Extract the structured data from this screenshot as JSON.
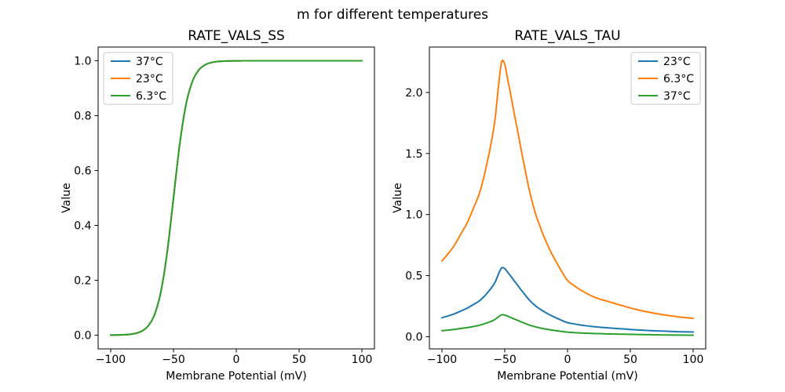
{
  "suptitle": "m for different temperatures",
  "colors": {
    "blue": "#1f77b4",
    "orange": "#ff7f0e",
    "green": "#2ca02c",
    "axes": "#000000",
    "legend_border": "#cccccc",
    "background": "#ffffff"
  },
  "chart_data": [
    {
      "type": "line",
      "title": "RATE_VALS_SS",
      "xlabel": "Membrane Potential (mV)",
      "ylabel": "Value",
      "grid": false,
      "legend_position": "upper-left",
      "xlim": [
        -110,
        110
      ],
      "ylim": [
        -0.05,
        1.05
      ],
      "xticks": [
        -100,
        -50,
        0,
        50,
        100
      ],
      "yticks": [
        0.0,
        0.2,
        0.4,
        0.6,
        0.8,
        1.0
      ],
      "xtick_labels": [
        "−100",
        "−50",
        "0",
        "50",
        "100"
      ],
      "ytick_labels": [
        "0.0",
        "0.2",
        "0.4",
        "0.6",
        "0.8",
        "1.0"
      ],
      "x": [
        -100,
        -95,
        -90,
        -85,
        -80,
        -75,
        -70,
        -65,
        -60,
        -55,
        -50,
        -45,
        -40,
        -35,
        -30,
        -25,
        -20,
        -15,
        -10,
        -5,
        0,
        5,
        10,
        15,
        20,
        25,
        30,
        35,
        40,
        45,
        50,
        55,
        60,
        65,
        70,
        75,
        80,
        85,
        90,
        95,
        100
      ],
      "series": [
        {
          "name": "37°C",
          "color": "#1f77b4",
          "values": [
            0.0002,
            0.0006,
            0.0013,
            0.0029,
            0.0067,
            0.0153,
            0.0345,
            0.0759,
            0.1589,
            0.3029,
            0.5,
            0.6971,
            0.8411,
            0.9241,
            0.9655,
            0.9847,
            0.9933,
            0.9971,
            0.9987,
            0.9994,
            0.9997,
            0.9999,
            0.9999,
            1.0,
            1.0,
            1.0,
            1.0,
            1.0,
            1.0,
            1.0,
            1.0,
            1.0,
            1.0,
            1.0,
            1.0,
            1.0,
            1.0,
            1.0,
            1.0,
            1.0,
            1.0
          ]
        },
        {
          "name": "23°C",
          "color": "#ff7f0e",
          "values": [
            0.0002,
            0.0006,
            0.0013,
            0.0029,
            0.0067,
            0.0153,
            0.0345,
            0.0759,
            0.1589,
            0.3029,
            0.5,
            0.6971,
            0.8411,
            0.9241,
            0.9655,
            0.9847,
            0.9933,
            0.9971,
            0.9987,
            0.9994,
            0.9997,
            0.9999,
            0.9999,
            1.0,
            1.0,
            1.0,
            1.0,
            1.0,
            1.0,
            1.0,
            1.0,
            1.0,
            1.0,
            1.0,
            1.0,
            1.0,
            1.0,
            1.0,
            1.0,
            1.0,
            1.0
          ]
        },
        {
          "name": "6.3°C",
          "color": "#2ca02c",
          "values": [
            0.0002,
            0.0006,
            0.0013,
            0.0029,
            0.0067,
            0.0153,
            0.0345,
            0.0759,
            0.1589,
            0.3029,
            0.5,
            0.6971,
            0.8411,
            0.9241,
            0.9655,
            0.9847,
            0.9933,
            0.9971,
            0.9987,
            0.9994,
            0.9997,
            0.9999,
            0.9999,
            1.0,
            1.0,
            1.0,
            1.0,
            1.0,
            1.0,
            1.0,
            1.0,
            1.0,
            1.0,
            1.0,
            1.0,
            1.0,
            1.0,
            1.0,
            1.0,
            1.0,
            1.0
          ]
        }
      ]
    },
    {
      "type": "line",
      "title": "RATE_VALS_TAU",
      "xlabel": "Membrane Potential (mV)",
      "ylabel": "Value",
      "grid": false,
      "legend_position": "upper-right",
      "xlim": [
        -110,
        110
      ],
      "ylim": [
        -0.1,
        2.372
      ],
      "xticks": [
        -100,
        -50,
        0,
        50,
        100
      ],
      "yticks": [
        0.0,
        0.5,
        1.0,
        1.5,
        2.0
      ],
      "xtick_labels": [
        "−100",
        "−50",
        "0",
        "50",
        "100"
      ],
      "ytick_labels": [
        "0.0",
        "0.5",
        "1.0",
        "1.5",
        "2.0"
      ],
      "x": [
        -100,
        -95,
        -90,
        -85,
        -80,
        -75,
        -70,
        -65,
        -60,
        -57.5,
        -55,
        -52.5,
        -50,
        -47.5,
        -45,
        -42.5,
        -40,
        -37.5,
        -35,
        -32.5,
        -30,
        -27.5,
        -25,
        -22.5,
        -20,
        -15,
        -10,
        -5,
        0,
        5,
        10,
        15,
        20,
        25,
        30,
        35,
        40,
        45,
        50,
        55,
        60,
        65,
        70,
        75,
        80,
        85,
        90,
        95,
        100
      ],
      "series": [
        {
          "name": "23°C",
          "color": "#1f77b4",
          "values": [
            0.155,
            0.17,
            0.188,
            0.21,
            0.233,
            0.263,
            0.295,
            0.345,
            0.408,
            0.45,
            0.513,
            0.563,
            0.558,
            0.525,
            0.493,
            0.458,
            0.425,
            0.39,
            0.358,
            0.325,
            0.295,
            0.27,
            0.248,
            0.23,
            0.213,
            0.183,
            0.158,
            0.135,
            0.115,
            0.105,
            0.096,
            0.089,
            0.083,
            0.078,
            0.074,
            0.07,
            0.066,
            0.063,
            0.059,
            0.056,
            0.053,
            0.05,
            0.048,
            0.046,
            0.044,
            0.042,
            0.04,
            0.039,
            0.038
          ]
        },
        {
          "name": "6.3°C",
          "color": "#ff7f0e",
          "values": [
            0.62,
            0.68,
            0.75,
            0.84,
            0.93,
            1.05,
            1.18,
            1.38,
            1.63,
            1.8,
            2.05,
            2.25,
            2.23,
            2.1,
            1.97,
            1.83,
            1.7,
            1.56,
            1.43,
            1.3,
            1.18,
            1.08,
            0.99,
            0.92,
            0.85,
            0.73,
            0.63,
            0.54,
            0.46,
            0.42,
            0.385,
            0.355,
            0.33,
            0.31,
            0.295,
            0.28,
            0.265,
            0.25,
            0.235,
            0.222,
            0.21,
            0.2,
            0.19,
            0.182,
            0.174,
            0.167,
            0.16,
            0.155,
            0.15
          ]
        },
        {
          "name": "37°C",
          "color": "#2ca02c",
          "values": [
            0.049,
            0.054,
            0.06,
            0.067,
            0.074,
            0.083,
            0.094,
            0.11,
            0.129,
            0.143,
            0.163,
            0.179,
            0.177,
            0.167,
            0.156,
            0.145,
            0.135,
            0.124,
            0.113,
            0.103,
            0.094,
            0.086,
            0.079,
            0.073,
            0.067,
            0.058,
            0.05,
            0.043,
            0.037,
            0.033,
            0.031,
            0.028,
            0.026,
            0.025,
            0.023,
            0.022,
            0.021,
            0.02,
            0.019,
            0.018,
            0.017,
            0.016,
            0.015,
            0.014,
            0.014,
            0.013,
            0.013,
            0.012,
            0.012
          ]
        }
      ]
    }
  ]
}
